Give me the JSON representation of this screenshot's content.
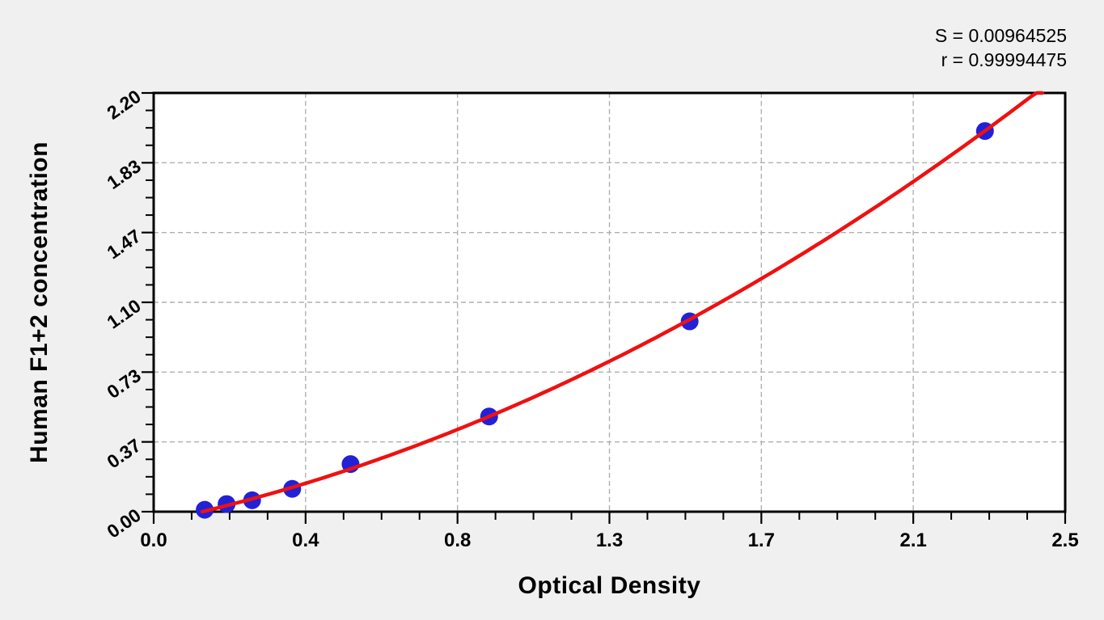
{
  "chart_data": {
    "type": "scatter",
    "title": "",
    "xlabel": "Optical Density",
    "ylabel": "Human F1+2 concentration",
    "xlim": [
      0,
      2.5
    ],
    "ylim": [
      0,
      2.2
    ],
    "x_tick_labels": [
      "0.0",
      "0.4",
      "0.8",
      "1.3",
      "1.7",
      "2.1",
      "2.5"
    ],
    "y_tick_labels": [
      "0.00",
      "0.37",
      "0.73",
      "1.10",
      "1.47",
      "1.83",
      "2.20"
    ],
    "minor_divisions_per_major": 4,
    "grid": {
      "style": "dashed",
      "at": "major-ticks",
      "color": "#b0b0b0"
    },
    "points": [
      {
        "od": 0.14,
        "conc": 0.01
      },
      {
        "od": 0.2,
        "conc": 0.04
      },
      {
        "od": 0.27,
        "conc": 0.06
      },
      {
        "od": 0.38,
        "conc": 0.12
      },
      {
        "od": 0.54,
        "conc": 0.25
      },
      {
        "od": 0.92,
        "conc": 0.5
      },
      {
        "od": 1.47,
        "conc": 1.0
      },
      {
        "od": 2.28,
        "conc": 2.0
      }
    ],
    "trend_curve": {
      "fit": "quadratic",
      "a2": 0.218,
      "a1": 0.406,
      "a0": -0.058,
      "od_range": [
        0.133,
        2.437
      ]
    },
    "stats": {
      "s_line": "S = 0.00964525",
      "r_line": "r = 0.99994475"
    },
    "colors": {
      "points": "#2121d8",
      "curve": "#ee1111",
      "plot_background": "#ffffff",
      "page_background": "#f0f0f0",
      "axis": "#000000",
      "gridline": "#b0b0b0",
      "text": "#000000"
    },
    "legend": null
  }
}
